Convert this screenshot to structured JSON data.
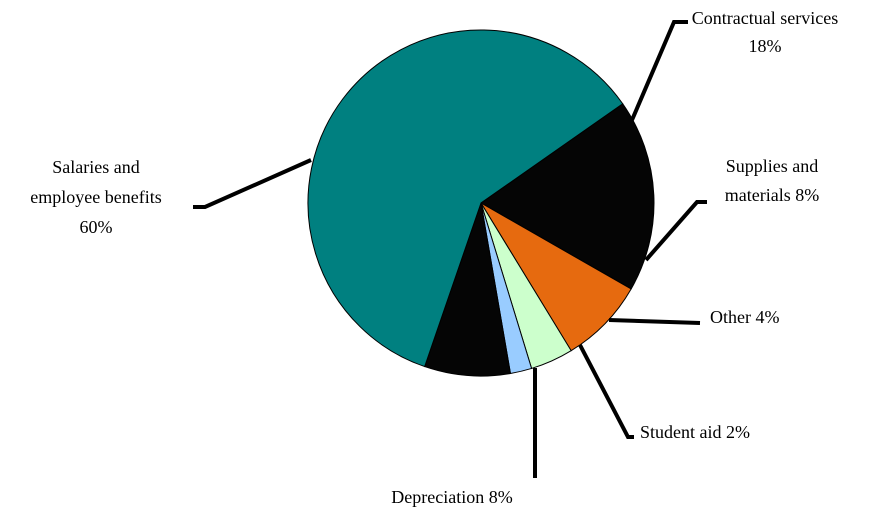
{
  "chart_data": {
    "type": "pie",
    "title": "",
    "slices": [
      {
        "name": "Contractual services",
        "value": 18,
        "value_label": "18%",
        "color": "#050505"
      },
      {
        "name": "Supplies and materials",
        "value": 8,
        "value_label": "8%",
        "color": "#e66a0f"
      },
      {
        "name": "Other",
        "value": 4,
        "value_label": "4%",
        "color": "#ccffcc"
      },
      {
        "name": "Student aid",
        "value": 2,
        "value_label": "2%",
        "color": "#99ccff"
      },
      {
        "name": "Depreciation",
        "value": 8,
        "value_label": "8%",
        "color": "#050505"
      },
      {
        "name": "Salaries and employee benefits",
        "value": 60,
        "value_label": "60%",
        "color": "#008080"
      }
    ],
    "labels": {
      "contractual": [
        "Contractual services",
        "18%"
      ],
      "supplies": [
        "Supplies and",
        "materials  8%"
      ],
      "other": [
        "Other 4%"
      ],
      "student_aid": [
        "Student aid 2%"
      ],
      "depreciation": [
        "Depreciation 8%"
      ],
      "salaries": [
        "Salaries and",
        "employee benefits",
        "60%"
      ]
    }
  }
}
